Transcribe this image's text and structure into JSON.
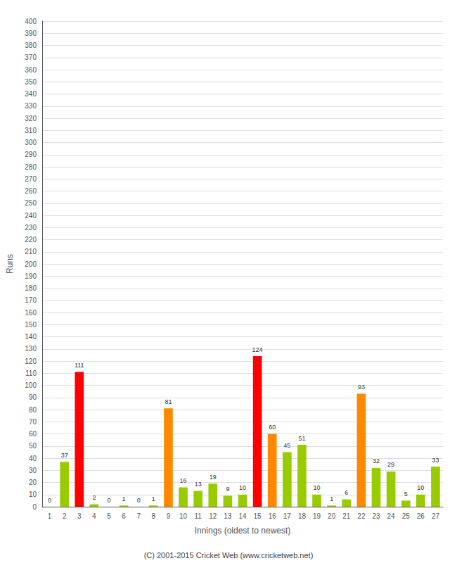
{
  "chart_data": {
    "type": "bar",
    "xlabel": "Innings (oldest to newest)",
    "ylabel": "Runs",
    "annotations": [
      "(C) 2001-2015 Cricket Web (www.cricketweb.net)"
    ],
    "categories": [
      "1",
      "2",
      "3",
      "4",
      "5",
      "6",
      "7",
      "8",
      "9",
      "10",
      "11",
      "12",
      "13",
      "14",
      "15",
      "16",
      "17",
      "18",
      "19",
      "20",
      "21",
      "22",
      "23",
      "24",
      "25",
      "26",
      "27"
    ],
    "values": [
      0,
      37,
      111,
      2,
      0,
      1,
      0,
      1,
      81,
      16,
      13,
      19,
      9,
      10,
      124,
      60,
      45,
      51,
      10,
      1,
      6,
      93,
      32,
      29,
      5,
      10,
      33
    ],
    "colors": [
      "#99cc00",
      "#99cc00",
      "#ff0000",
      "#99cc00",
      "#99cc00",
      "#99cc00",
      "#99cc00",
      "#99cc00",
      "#ff8800",
      "#99cc00",
      "#99cc00",
      "#99cc00",
      "#99cc00",
      "#99cc00",
      "#ff0000",
      "#ff8800",
      "#99cc00",
      "#99cc00",
      "#99cc00",
      "#99cc00",
      "#99cc00",
      "#ff8800",
      "#99cc00",
      "#99cc00",
      "#99cc00",
      "#99cc00",
      "#99cc00"
    ],
    "ylim": [
      0,
      400
    ],
    "yticks": [
      0,
      10,
      20,
      30,
      40,
      50,
      60,
      70,
      80,
      90,
      100,
      110,
      120,
      130,
      140,
      150,
      160,
      170,
      180,
      190,
      200,
      210,
      220,
      230,
      240,
      250,
      260,
      270,
      280,
      290,
      300,
      310,
      320,
      330,
      340,
      350,
      360,
      370,
      380,
      390,
      400
    ],
    "grid": true,
    "data_labels": true
  }
}
